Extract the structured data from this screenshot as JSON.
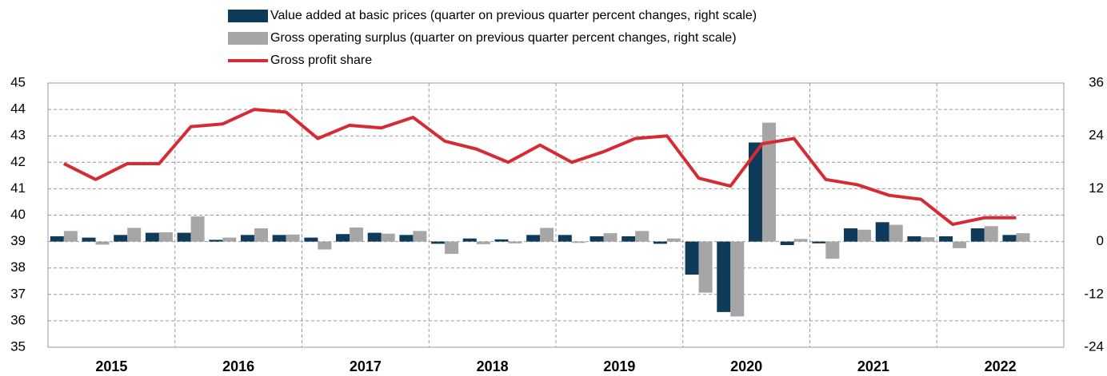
{
  "chart_data": {
    "type": "bar",
    "categories": [
      "2015",
      null,
      null,
      null,
      "2016",
      null,
      null,
      null,
      "2017",
      null,
      null,
      null,
      "2018",
      null,
      null,
      null,
      "2019",
      null,
      null,
      null,
      "2020",
      null,
      null,
      null,
      "2021",
      null,
      null,
      null,
      "2022",
      null,
      null,
      null
    ],
    "series": [
      {
        "name": "Value added at basic prices (quarter on previous quarter percent changes, right scale)",
        "type": "bar",
        "axis": "y2",
        "color": "#0f3b5a",
        "values": [
          1.2,
          0.9,
          1.5,
          2.0,
          2.0,
          0.4,
          1.5,
          1.5,
          0.9,
          1.7,
          2.0,
          1.5,
          -0.5,
          0.7,
          0.5,
          1.5,
          1.5,
          1.2,
          1.2,
          -0.5,
          -7.5,
          -16,
          22.5,
          -0.8,
          -0.4,
          3.0,
          4.4,
          1.2,
          1.2,
          3.0,
          1.5,
          null
        ]
      },
      {
        "name": "Gross operating surplus (quarter on previous quarter percent changes, right scale)",
        "type": "bar",
        "axis": "y2",
        "color": "#a6a6a6",
        "values": [
          2.4,
          -0.7,
          3.1,
          2.1,
          5.7,
          0.9,
          3.0,
          1.6,
          -1.8,
          3.2,
          1.8,
          2.4,
          -2.8,
          -0.6,
          -0.4,
          3.1,
          -0.3,
          1.9,
          2.4,
          0.7,
          -11.6,
          -17,
          27,
          0.6,
          -3.9,
          2.7,
          3.8,
          1.0,
          -1.5,
          3.5,
          1.9,
          null
        ]
      },
      {
        "name": "Gross profit share",
        "type": "line",
        "color": "#d62b35",
        "values": [
          41.95,
          41.35,
          41.95,
          41.95,
          43.35,
          43.45,
          44.0,
          43.9,
          42.9,
          43.4,
          43.3,
          43.7,
          42.8,
          42.5,
          42.0,
          42.65,
          42.0,
          42.4,
          42.9,
          43.0,
          41.4,
          41.1,
          42.7,
          42.9,
          41.35,
          41.15,
          40.75,
          40.6,
          39.65,
          39.9,
          39.9,
          null
        ]
      }
    ],
    "ylim": [
      35,
      45
    ],
    "yticks": [
      35,
      36,
      37,
      38,
      39,
      40,
      41,
      42,
      43,
      44,
      45
    ],
    "y2lim": [
      -24,
      36
    ],
    "y2ticks": [
      -24,
      -12,
      0,
      12,
      24,
      36
    ],
    "grid": true
  }
}
